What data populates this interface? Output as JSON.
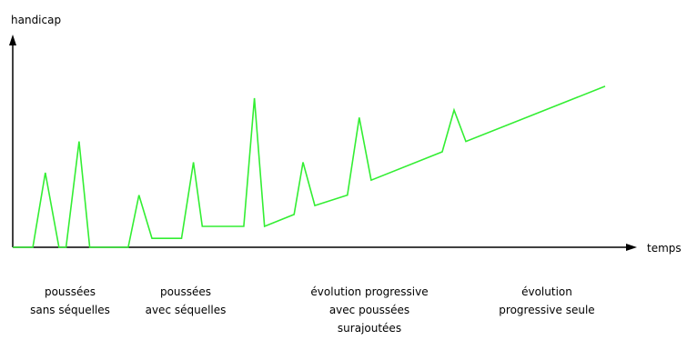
{
  "chart_data": {
    "type": "line",
    "ylabel": "handicap",
    "xlabel": "temps",
    "line_color": "#33ee33",
    "axis_color": "#000000",
    "xlim": [
      0,
      100
    ],
    "ylim": [
      0,
      100
    ],
    "grid": false,
    "series": [
      {
        "points": [
          [
            0,
            0
          ],
          [
            3.4,
            0
          ],
          [
            5.5,
            50
          ],
          [
            7.8,
            0
          ],
          [
            9.0,
            0
          ],
          [
            11.2,
            71
          ],
          [
            13.0,
            0
          ],
          [
            19.5,
            0
          ],
          [
            21.3,
            35
          ],
          [
            23.5,
            6
          ],
          [
            28.5,
            6
          ],
          [
            30.5,
            57
          ],
          [
            32.0,
            14
          ],
          [
            39.0,
            14
          ],
          [
            40.8,
            100
          ],
          [
            42.5,
            14
          ],
          [
            47.5,
            22
          ],
          [
            49.0,
            57
          ],
          [
            51.0,
            28
          ],
          [
            56.5,
            35
          ],
          [
            58.5,
            87
          ],
          [
            60.5,
            45
          ],
          [
            72.5,
            64
          ],
          [
            74.5,
            92
          ],
          [
            76.5,
            71
          ],
          [
            100,
            108
          ]
        ]
      }
    ],
    "phases": [
      {
        "lines": [
          "poussées",
          "sans séquelles"
        ]
      },
      {
        "lines": [
          "poussées",
          "avec séquelles"
        ]
      },
      {
        "lines": [
          "évolution progressive",
          "avec poussées",
          "surajoutées"
        ]
      },
      {
        "lines": [
          "évolution",
          "progressive seule"
        ]
      }
    ]
  }
}
